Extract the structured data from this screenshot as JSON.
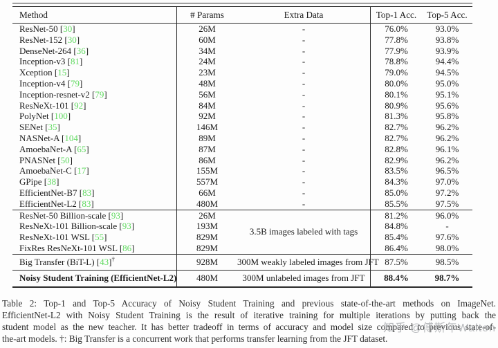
{
  "table": {
    "headers": [
      "Method",
      "# Params",
      "Extra Data",
      "Top-1 Acc.",
      "Top-5 Acc."
    ],
    "blocks": [
      {
        "name": "prior-sota-supervised",
        "rows": [
          {
            "method": "ResNet-50",
            "cite": "30",
            "params": "26M",
            "extra": "-",
            "top1": "76.0%",
            "top5": "93.0%"
          },
          {
            "method": "ResNet-152",
            "cite": "30",
            "params": "60M",
            "extra": "-",
            "top1": "77.8%",
            "top5": "93.8%"
          },
          {
            "method": "DenseNet-264",
            "cite": "36",
            "params": "34M",
            "extra": "-",
            "top1": "77.9%",
            "top5": "93.9%"
          },
          {
            "method": "Inception-v3",
            "cite": "81",
            "params": "24M",
            "extra": "-",
            "top1": "78.8%",
            "top5": "94.4%"
          },
          {
            "method": "Xception",
            "cite": "15",
            "params": "23M",
            "extra": "-",
            "top1": "79.0%",
            "top5": "94.5%"
          },
          {
            "method": "Inception-v4",
            "cite": "79",
            "params": "48M",
            "extra": "-",
            "top1": "80.0%",
            "top5": "95.0%"
          },
          {
            "method": "Inception-resnet-v2",
            "cite": "79",
            "params": "56M",
            "extra": "-",
            "top1": "80.1%",
            "top5": "95.1%"
          },
          {
            "method": "ResNeXt-101",
            "cite": "92",
            "params": "84M",
            "extra": "-",
            "top1": "80.9%",
            "top5": "95.6%"
          },
          {
            "method": "PolyNet",
            "cite": "100",
            "params": "92M",
            "extra": "-",
            "top1": "81.3%",
            "top5": "95.8%"
          },
          {
            "method": "SENet",
            "cite": "35",
            "params": "146M",
            "extra": "-",
            "top1": "82.7%",
            "top5": "96.2%"
          },
          {
            "method": "NASNet-A",
            "cite": "104",
            "params": "89M",
            "extra": "-",
            "top1": "82.7%",
            "top5": "96.2%"
          },
          {
            "method": "AmoebaNet-A",
            "cite": "65",
            "params": "87M",
            "extra": "-",
            "top1": "82.8%",
            "top5": "96.1%"
          },
          {
            "method": "PNASNet",
            "cite": "50",
            "params": "86M",
            "extra": "-",
            "top1": "82.9%",
            "top5": "96.2%"
          },
          {
            "method": "AmoebaNet-C",
            "cite": "17",
            "params": "155M",
            "extra": "-",
            "top1": "83.5%",
            "top5": "96.5%"
          },
          {
            "method": "GPipe",
            "cite": "38",
            "params": "557M",
            "extra": "-",
            "top1": "84.3%",
            "top5": "97.0%"
          },
          {
            "method": "EfficientNet-B7",
            "cite": "83",
            "params": "66M",
            "extra": "-",
            "top1": "85.0%",
            "top5": "97.2%"
          },
          {
            "method": "EfficientNet-L2",
            "cite": "83",
            "params": "480M",
            "extra": "-",
            "top1": "85.5%",
            "top5": "97.5%"
          }
        ]
      },
      {
        "name": "billion-scale-weakly-supervised",
        "extra_shared": "3.5B images labeled with tags",
        "rows": [
          {
            "method": "ResNet-50 Billion-scale",
            "cite": "93",
            "params": "26M",
            "top1": "81.2%",
            "top5": "96.0%"
          },
          {
            "method": "ResNeXt-101 Billion-scale",
            "cite": "93",
            "params": "193M",
            "top1": "84.8%",
            "top5": "-"
          },
          {
            "method": "ResNeXt-101 WSL",
            "cite": "55",
            "params": "829M",
            "top1": "85.4%",
            "top5": "97.6%"
          },
          {
            "method": "FixRes ResNeXt-101 WSL",
            "cite": "86",
            "params": "829M",
            "top1": "86.4%",
            "top5": "98.0%"
          }
        ]
      },
      {
        "name": "big-transfer",
        "rows": [
          {
            "method": "Big Transfer (BiT-L)",
            "cite": "43",
            "dagger": "†",
            "params": "928M",
            "extra": "300M weakly labeled images from JFT",
            "top1": "87.5%",
            "top5": "98.5%"
          }
        ]
      },
      {
        "name": "noisy-student",
        "rows": [
          {
            "method": "Noisy Student Training (EfficientNet-L2)",
            "bold": true,
            "params": "480M",
            "extra": "300M unlabeled images from JFT",
            "top1": "88.4%",
            "top5": "98.7%"
          }
        ]
      }
    ]
  },
  "caption": {
    "lines": [
      "Table 2:  Top-1 and Top-5 Accuracy of Noisy Student Training and previous state-of-the-art methods on ImageNet.",
      "EfficientNet-L2 with Noisy Student Training is the result of iterative training for multiple iterations by putting back the",
      "student model as the new teacher.  It has better tradeoff in terms of accuracy and model size compared to previous state-of-",
      "the-art models. †: Big Transfer is a concurrent work that performs transfer learning from the JFT dataset."
    ]
  },
  "watermark": "知乎 @傅斯年Walton",
  "colors": {
    "citation_green": "#5fd95f",
    "rule_black": "#2a2a2a",
    "watermark_gray": "#abaeb1"
  }
}
